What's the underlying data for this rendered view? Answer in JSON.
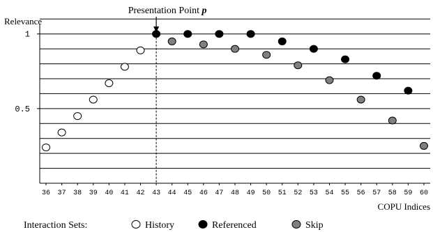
{
  "chart_data": {
    "type": "scatter",
    "title": "",
    "ylabel": "Relevance",
    "xlabel": "COPU Indices",
    "ylim": [
      0,
      1.05
    ],
    "xlim": [
      35.6,
      60.4
    ],
    "y_ticks": [
      {
        "value": 1,
        "label": "1"
      },
      {
        "value": 0.5,
        "label": "0.5"
      }
    ],
    "x_ticks": [
      36,
      37,
      38,
      39,
      40,
      41,
      42,
      43,
      44,
      45,
      46,
      47,
      48,
      49,
      50,
      51,
      52,
      53,
      54,
      55,
      56,
      57,
      58,
      59,
      60
    ],
    "grid": true,
    "grid_step": 0.1,
    "annotation": {
      "label": "Presentation Point",
      "symbol": "p",
      "x": 43
    },
    "legend": {
      "title": "Interaction Sets:",
      "placement": "bottom"
    },
    "series": [
      {
        "name": "History",
        "fill": "#ffffff",
        "x": [
          36,
          37,
          38,
          39,
          40,
          41,
          42
        ],
        "y": [
          0.24,
          0.34,
          0.45,
          0.56,
          0.67,
          0.78,
          0.89
        ]
      },
      {
        "name": "Referenced",
        "fill": "#000000",
        "x": [
          43,
          45,
          47,
          49,
          51,
          53,
          55,
          57,
          59
        ],
        "y": [
          1.0,
          1.0,
          1.0,
          1.0,
          0.95,
          0.9,
          0.83,
          0.72,
          0.62
        ]
      },
      {
        "name": "Skip",
        "fill": "#808080",
        "x": [
          44,
          46,
          48,
          50,
          52,
          54,
          56,
          58,
          60
        ],
        "y": [
          0.95,
          0.93,
          0.9,
          0.86,
          0.79,
          0.69,
          0.56,
          0.42,
          0.25
        ]
      }
    ]
  }
}
